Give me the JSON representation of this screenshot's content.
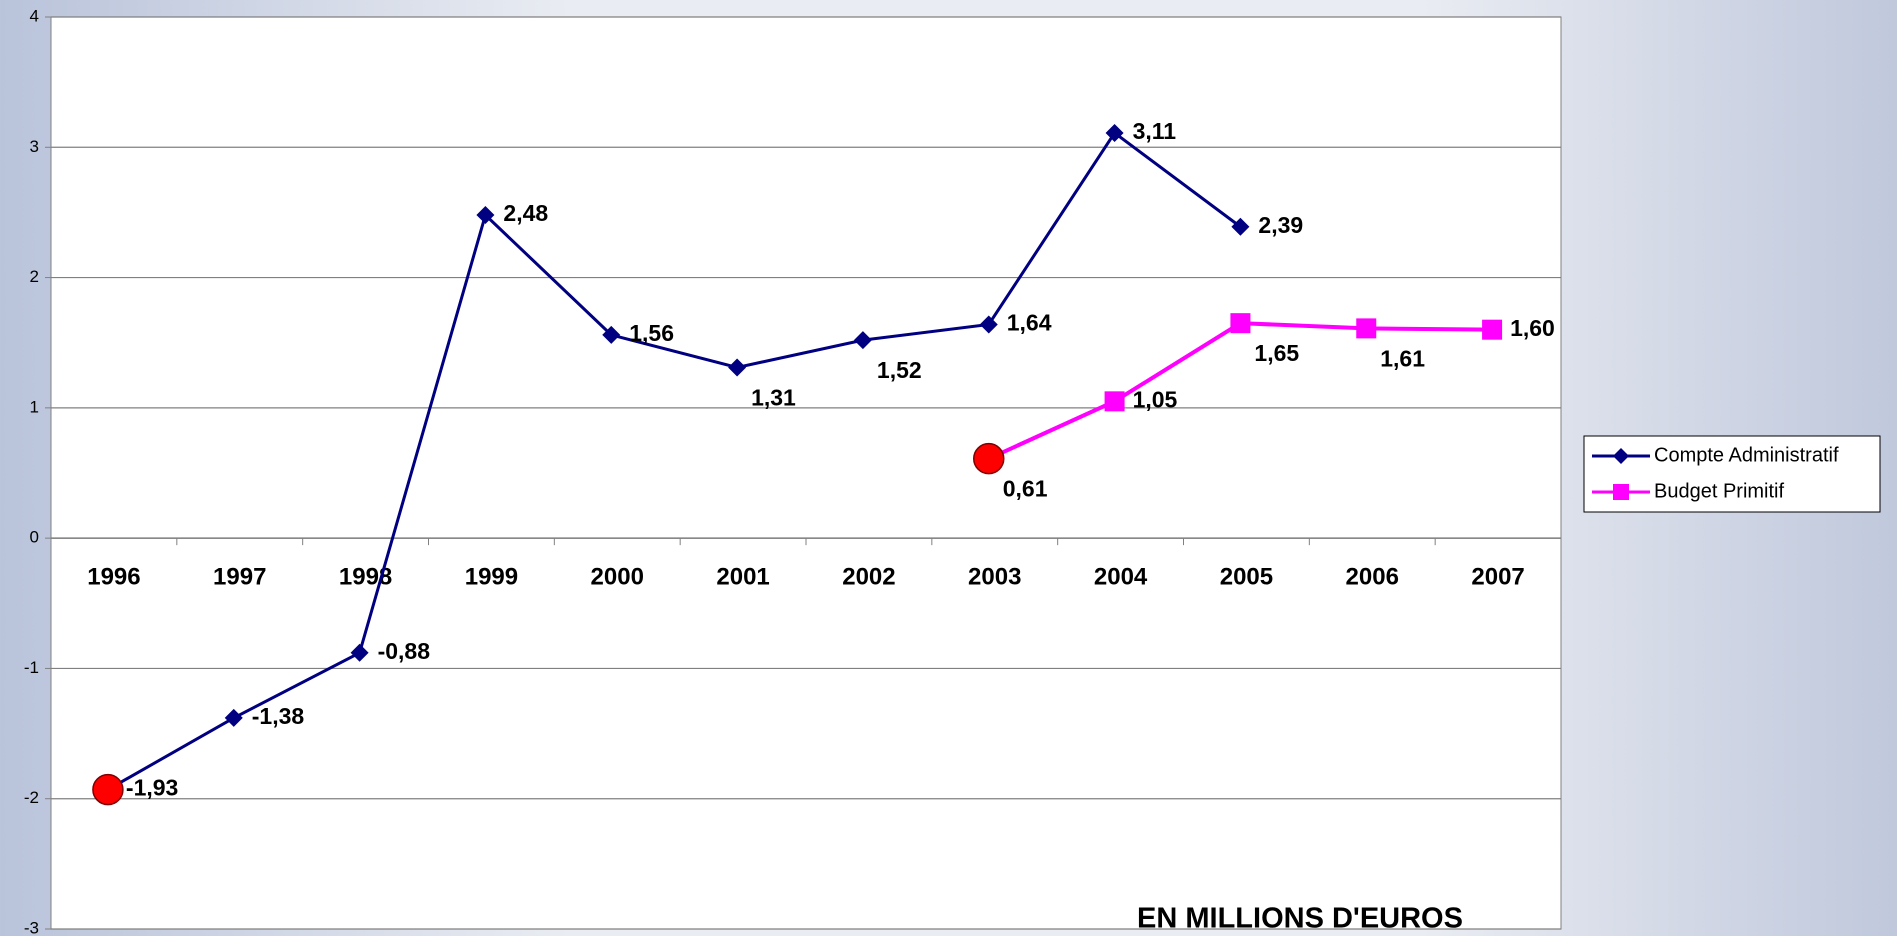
{
  "chart_data": {
    "type": "line",
    "annotation": "EN MILLIONS D'EUROS",
    "categories": [
      "1996",
      "1997",
      "1998",
      "1999",
      "2000",
      "2001",
      "2002",
      "2003",
      "2004",
      "2005",
      "2006",
      "2007"
    ],
    "series": [
      {
        "name": "Compte Administratif",
        "color": "#000080",
        "marker": "diamond",
        "values": [
          -1.93,
          -1.38,
          -0.88,
          2.48,
          1.56,
          1.31,
          1.52,
          1.64,
          3.11,
          2.39,
          null,
          null
        ],
        "value_labels": [
          "-1,93",
          "-1,38",
          "-0,88",
          "2,48",
          "1,56",
          "1,31",
          "1,52",
          "1,64",
          "3,11",
          "2,39",
          null,
          null
        ],
        "highlight": [
          0
        ]
      },
      {
        "name": "Budget Primitif",
        "color": "#ff00ff",
        "marker": "square",
        "values": [
          null,
          null,
          null,
          null,
          null,
          null,
          null,
          0.61,
          1.05,
          1.65,
          1.61,
          1.6
        ],
        "value_labels": [
          null,
          null,
          null,
          null,
          null,
          null,
          null,
          "0,61",
          "1,05",
          "1,65",
          "1,61",
          "1,60"
        ],
        "highlight": [
          7
        ]
      }
    ],
    "highlight_color": "#ff0000",
    "ylim": [
      -3,
      4
    ],
    "yticks": [
      -3,
      -2,
      -1,
      0,
      1,
      2,
      3,
      4
    ],
    "grid": true,
    "legend": "right"
  }
}
